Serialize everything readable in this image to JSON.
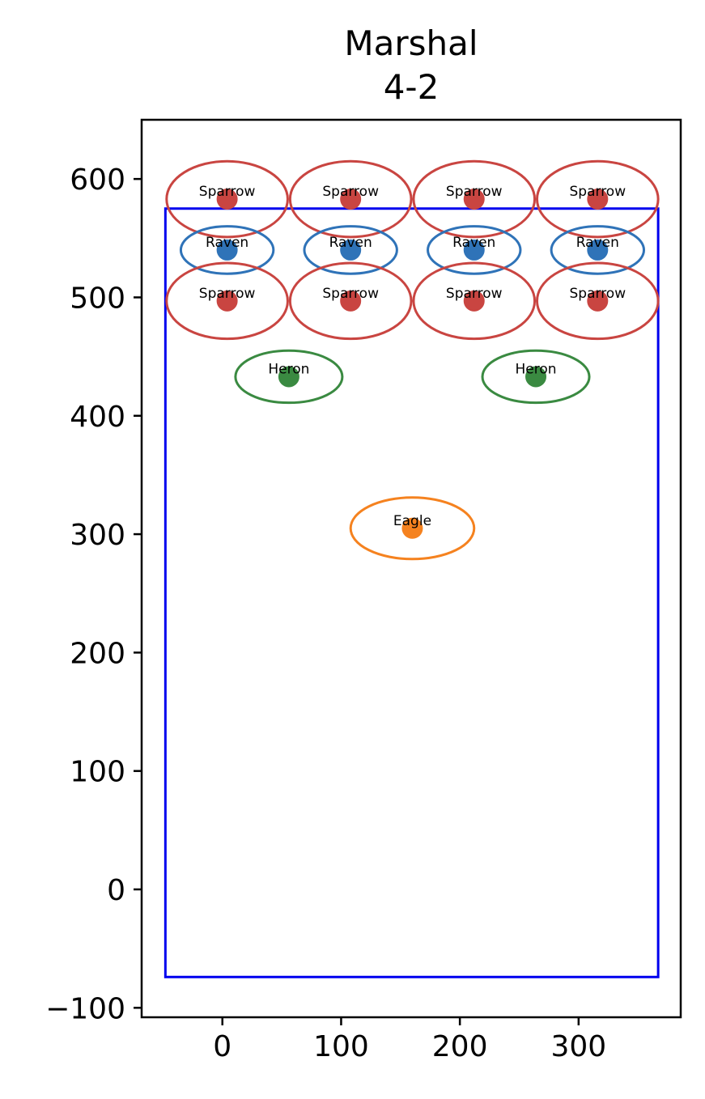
{
  "chart_data": {
    "type": "scatter",
    "title": [
      "Marshal",
      "4-2"
    ],
    "xlabel": "",
    "ylabel": "",
    "xlim": [
      -68,
      386
    ],
    "ylim": [
      -108,
      650
    ],
    "xticks": [
      0,
      100,
      200,
      300
    ],
    "yticks": [
      -100,
      0,
      100,
      200,
      300,
      400,
      500,
      600
    ],
    "xtick_labels": [
      "0",
      "100",
      "200",
      "300"
    ],
    "ytick_labels": [
      "−100",
      "0",
      "100",
      "200",
      "300",
      "400",
      "500",
      "600"
    ],
    "grid": false,
    "boundary": {
      "x": [
        -48,
        367
      ],
      "y": [
        -74,
        575
      ],
      "color": "#0000ee"
    },
    "units": [
      {
        "label": "Sparrow",
        "x": 4,
        "y": 583,
        "rx": 51,
        "ry": 32,
        "color": "#c94541"
      },
      {
        "label": "Sparrow",
        "x": 108,
        "y": 583,
        "rx": 51,
        "ry": 32,
        "color": "#c94541"
      },
      {
        "label": "Sparrow",
        "x": 212,
        "y": 583,
        "rx": 51,
        "ry": 32,
        "color": "#c94541"
      },
      {
        "label": "Sparrow",
        "x": 316,
        "y": 583,
        "rx": 51,
        "ry": 32,
        "color": "#c94541"
      },
      {
        "label": "Raven",
        "x": 4,
        "y": 540,
        "rx": 39,
        "ry": 20,
        "color": "#2f73b8"
      },
      {
        "label": "Raven",
        "x": 108,
        "y": 540,
        "rx": 39,
        "ry": 20,
        "color": "#2f73b8"
      },
      {
        "label": "Raven",
        "x": 212,
        "y": 540,
        "rx": 39,
        "ry": 20,
        "color": "#2f73b8"
      },
      {
        "label": "Raven",
        "x": 316,
        "y": 540,
        "rx": 39,
        "ry": 20,
        "color": "#2f73b8"
      },
      {
        "label": "Sparrow",
        "x": 4,
        "y": 497,
        "rx": 51,
        "ry": 32,
        "color": "#c94541"
      },
      {
        "label": "Sparrow",
        "x": 108,
        "y": 497,
        "rx": 51,
        "ry": 32,
        "color": "#c94541"
      },
      {
        "label": "Sparrow",
        "x": 212,
        "y": 497,
        "rx": 51,
        "ry": 32,
        "color": "#c94541"
      },
      {
        "label": "Sparrow",
        "x": 316,
        "y": 497,
        "rx": 51,
        "ry": 32,
        "color": "#c94541"
      },
      {
        "label": "Heron",
        "x": 56,
        "y": 433,
        "rx": 45,
        "ry": 22,
        "color": "#3a8a41"
      },
      {
        "label": "Heron",
        "x": 264,
        "y": 433,
        "rx": 45,
        "ry": 22,
        "color": "#3a8a41"
      },
      {
        "label": "Eagle",
        "x": 160,
        "y": 305,
        "rx": 52,
        "ry": 26,
        "color": "#f5821f"
      }
    ]
  }
}
